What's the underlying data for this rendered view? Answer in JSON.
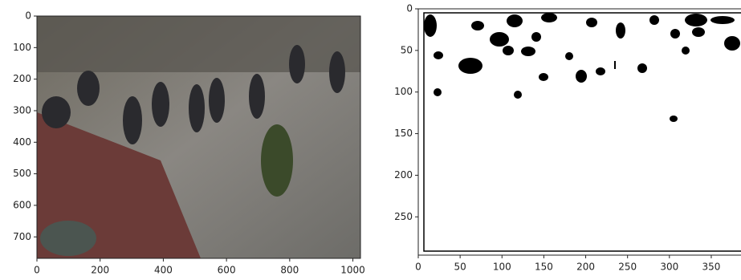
{
  "chart_data": [
    {
      "type": "image",
      "xlim": [
        0,
        1024
      ],
      "ylim": [
        768,
        0
      ],
      "xticks": [
        0,
        200,
        400,
        600,
        800,
        1000
      ],
      "yticks": [
        0,
        100,
        200,
        300,
        400,
        500,
        600,
        700
      ]
    },
    {
      "type": "image",
      "xlim": [
        0,
        386
      ],
      "ylim": [
        296,
        0
      ],
      "xticks": [
        0,
        50,
        100,
        150,
        200,
        250,
        300,
        350
      ],
      "yticks": [
        0,
        50,
        100,
        150,
        200,
        250
      ]
    }
  ]
}
